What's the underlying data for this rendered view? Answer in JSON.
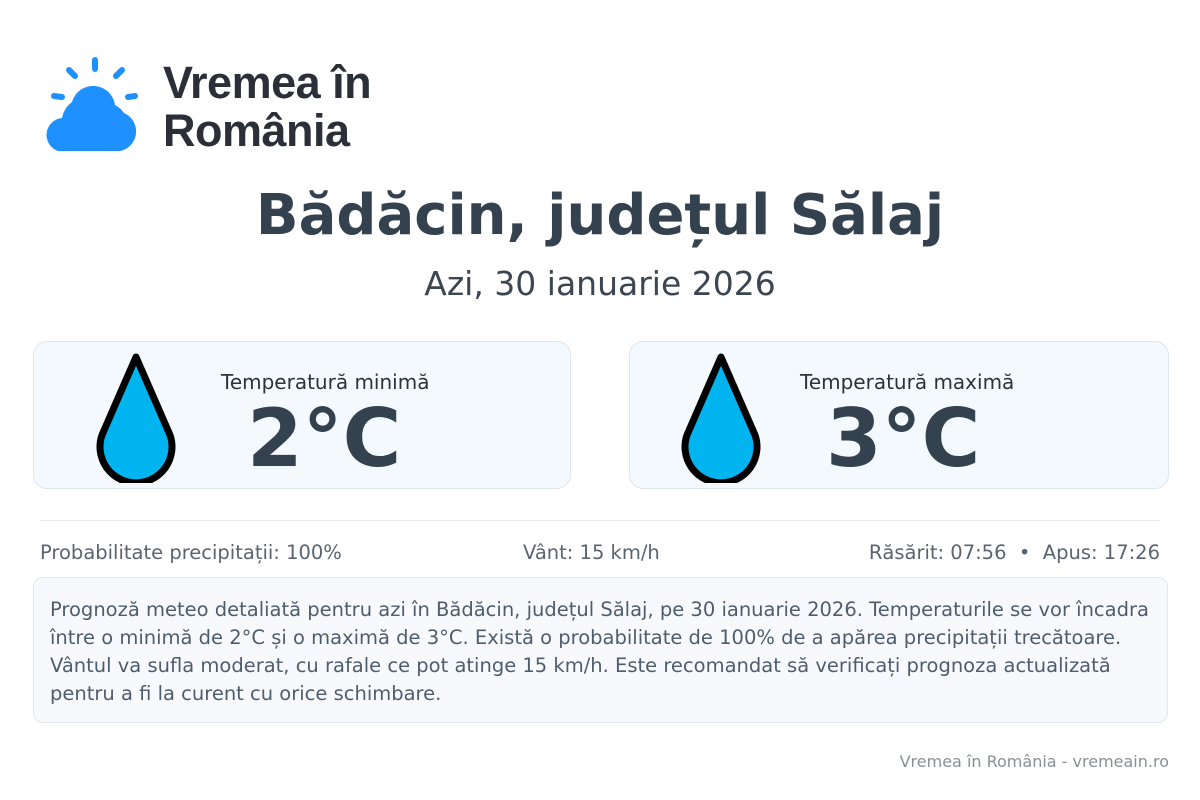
{
  "brand": {
    "line1": "Vremea în",
    "line2": "România",
    "logo_icon": "sun-behind-cloud-icon",
    "color": "#1e90ff"
  },
  "header": {
    "title": "Bădăcin, județul Sălaj",
    "subtitle": "Azi, 30 ianuarie 2026"
  },
  "cards": [
    {
      "label": "Temperatură minimă",
      "value": "2°C",
      "icon": "water-drop-icon"
    },
    {
      "label": "Temperatură maximă",
      "value": "3°C",
      "icon": "water-drop-icon"
    }
  ],
  "stats": {
    "precip": "Probabilitate precipitații: 100%",
    "wind": "Vânt: 15 km/h",
    "sun": "Răsărit: 07:56  •  Apus: 17:26"
  },
  "description": "Prognoză meteo detaliată pentru azi în Bădăcin, județul Sălaj, pe 30 ianuarie 2026. Temperaturile se vor încadra între o minimă de 2°C și o maximă de 3°C. Există o probabilitate de 100% de a apărea precipitații trecătoare. Vântul va sufla moderat, cu rafale ce pot atinge 15 km/h. Este recomandat să verificați prognoza actualizată pentru a fi la curent cu orice schimbare.",
  "footer": "Vremea în România - vremeain.ro",
  "colors": {
    "drop_fill": "#00b4f0",
    "title": "#34414f",
    "card_bg": "#f4f9fe"
  }
}
